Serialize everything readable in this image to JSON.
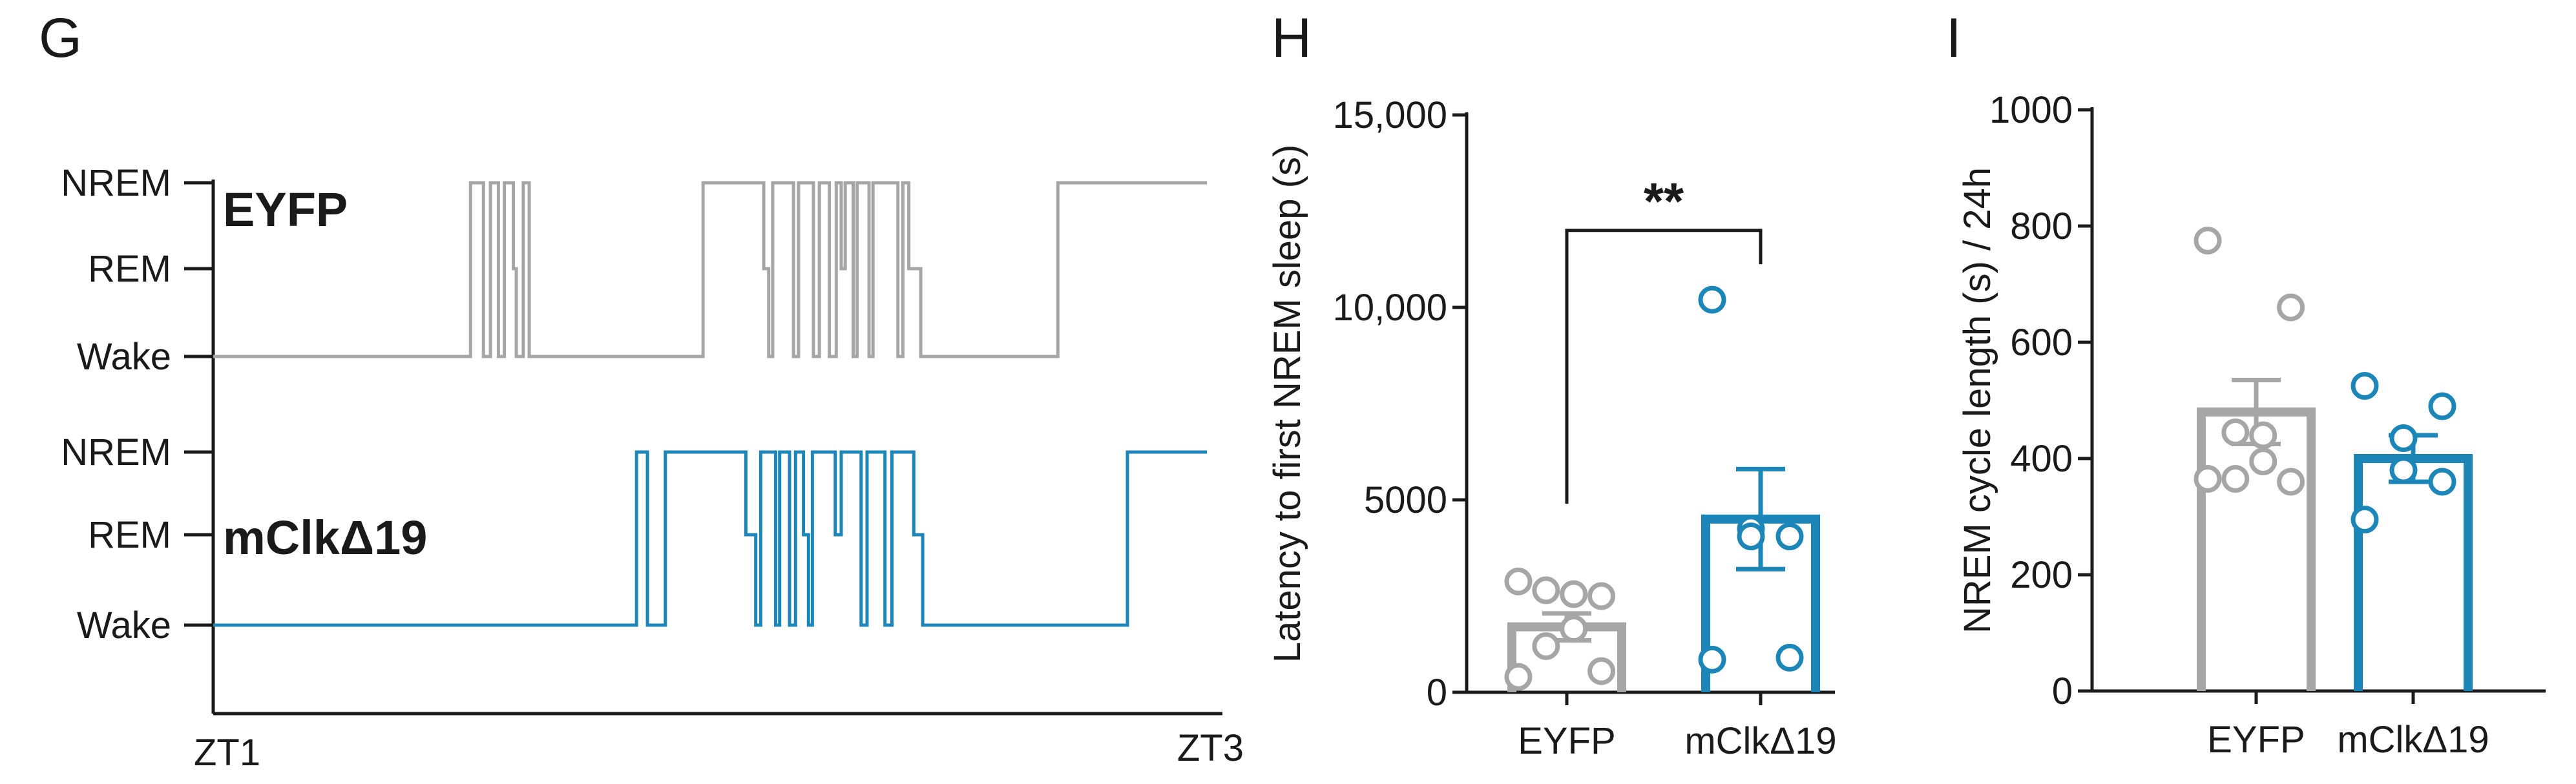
{
  "colors": {
    "eyfp": "#a6a6a6",
    "mclk": "#1b86b7",
    "axis": "#1a1a1a"
  },
  "panels": {
    "g": {
      "letter": "G"
    },
    "h": {
      "letter": "H"
    },
    "i": {
      "letter": "I"
    }
  },
  "chart_data": [
    {
      "panel": "G",
      "type": "line",
      "x_ticks": [
        "ZT1",
        "ZT3"
      ],
      "y_ticks": [
        "NREM",
        "REM",
        "Wake"
      ],
      "traces": [
        {
          "name": "EYFP",
          "color_key": "eyfp",
          "steps": [
            [
              0,
              0
            ],
            [
              0.259,
              0
            ],
            [
              0.259,
              2
            ],
            [
              0.272,
              2
            ],
            [
              0.272,
              0
            ],
            [
              0.279,
              0
            ],
            [
              0.279,
              2
            ],
            [
              0.287,
              2
            ],
            [
              0.287,
              0
            ],
            [
              0.293,
              0
            ],
            [
              0.293,
              2
            ],
            [
              0.302,
              2
            ],
            [
              0.302,
              1
            ],
            [
              0.305,
              1
            ],
            [
              0.305,
              0
            ],
            [
              0.312,
              0
            ],
            [
              0.312,
              2
            ],
            [
              0.318,
              2
            ],
            [
              0.318,
              0
            ],
            [
              0.493,
              0
            ],
            [
              0.493,
              2
            ],
            [
              0.554,
              2
            ],
            [
              0.554,
              1
            ],
            [
              0.559,
              1
            ],
            [
              0.559,
              0
            ],
            [
              0.563,
              0
            ],
            [
              0.563,
              2
            ],
            [
              0.584,
              2
            ],
            [
              0.584,
              0
            ],
            [
              0.589,
              0
            ],
            [
              0.589,
              2
            ],
            [
              0.604,
              2
            ],
            [
              0.604,
              0
            ],
            [
              0.61,
              0
            ],
            [
              0.61,
              2
            ],
            [
              0.62,
              2
            ],
            [
              0.62,
              0
            ],
            [
              0.627,
              0
            ],
            [
              0.627,
              2
            ],
            [
              0.632,
              2
            ],
            [
              0.632,
              1
            ],
            [
              0.636,
              1
            ],
            [
              0.636,
              2
            ],
            [
              0.644,
              2
            ],
            [
              0.644,
              0
            ],
            [
              0.648,
              0
            ],
            [
              0.648,
              2
            ],
            [
              0.66,
              2
            ],
            [
              0.66,
              0
            ],
            [
              0.664,
              0
            ],
            [
              0.664,
              2
            ],
            [
              0.689,
              2
            ],
            [
              0.689,
              0
            ],
            [
              0.694,
              0
            ],
            [
              0.694,
              2
            ],
            [
              0.7,
              2
            ],
            [
              0.7,
              1
            ],
            [
              0.712,
              1
            ],
            [
              0.712,
              0
            ],
            [
              0.85,
              0
            ],
            [
              0.85,
              2
            ],
            [
              1,
              2
            ]
          ]
        },
        {
          "name": "mClkΔ19",
          "color_key": "mclk",
          "steps": [
            [
              0,
              0
            ],
            [
              0.426,
              0
            ],
            [
              0.426,
              2
            ],
            [
              0.437,
              2
            ],
            [
              0.437,
              0
            ],
            [
              0.455,
              0
            ],
            [
              0.455,
              2
            ],
            [
              0.536,
              2
            ],
            [
              0.536,
              1
            ],
            [
              0.546,
              1
            ],
            [
              0.546,
              0
            ],
            [
              0.551,
              0
            ],
            [
              0.551,
              2
            ],
            [
              0.566,
              2
            ],
            [
              0.566,
              0
            ],
            [
              0.57,
              0
            ],
            [
              0.57,
              2
            ],
            [
              0.58,
              2
            ],
            [
              0.58,
              0
            ],
            [
              0.586,
              0
            ],
            [
              0.586,
              2
            ],
            [
              0.594,
              2
            ],
            [
              0.594,
              1
            ],
            [
              0.599,
              1
            ],
            [
              0.599,
              0
            ],
            [
              0.603,
              0
            ],
            [
              0.603,
              2
            ],
            [
              0.626,
              2
            ],
            [
              0.626,
              1
            ],
            [
              0.632,
              1
            ],
            [
              0.632,
              2
            ],
            [
              0.652,
              2
            ],
            [
              0.652,
              0
            ],
            [
              0.658,
              0
            ],
            [
              0.658,
              2
            ],
            [
              0.676,
              2
            ],
            [
              0.676,
              0
            ],
            [
              0.683,
              0
            ],
            [
              0.683,
              2
            ],
            [
              0.705,
              2
            ],
            [
              0.705,
              1
            ],
            [
              0.714,
              1
            ],
            [
              0.714,
              0
            ],
            [
              0.92,
              0
            ],
            [
              0.92,
              2
            ],
            [
              1,
              2
            ]
          ]
        }
      ]
    },
    {
      "panel": "H",
      "type": "bar",
      "ylabel": "Latency  to first NREM sleep (s)",
      "ylim": [
        0,
        15000
      ],
      "y_ticks": [
        {
          "v": 0,
          "t": "0"
        },
        {
          "v": 5000,
          "t": "5000"
        },
        {
          "v": 10000,
          "t": "10,000"
        },
        {
          "v": 15000,
          "t": "15,000"
        }
      ],
      "categories": [
        "EYFP",
        "mClkΔ19"
      ],
      "values": [
        1700,
        4500
      ],
      "sem": [
        350,
        1300
      ],
      "points": [
        [
          2880,
          2500,
          2650,
          2550,
          1650,
          1200,
          550,
          400
        ],
        [
          10200,
          4050,
          4250,
          4050,
          900,
          850
        ]
      ],
      "significance": {
        "label": "**",
        "level": 12000
      }
    },
    {
      "panel": "I",
      "type": "bar",
      "ylabel": "NREM cycle length (s) / 24h",
      "ylim": [
        0,
        1000
      ],
      "y_ticks": [
        {
          "v": 0,
          "t": "0"
        },
        {
          "v": 200,
          "t": "200"
        },
        {
          "v": 400,
          "t": "400"
        },
        {
          "v": 600,
          "t": "600"
        },
        {
          "v": 800,
          "t": "800"
        },
        {
          "v": 1000,
          "t": "1000"
        }
      ],
      "categories": [
        "EYFP",
        "mClkΔ19"
      ],
      "values": [
        480,
        400
      ],
      "sem": [
        55,
        40
      ],
      "points": [
        [
          775,
          660,
          445,
          440,
          395,
          365,
          360,
          365
        ],
        [
          525,
          490,
          435,
          380,
          360,
          295
        ]
      ]
    }
  ]
}
